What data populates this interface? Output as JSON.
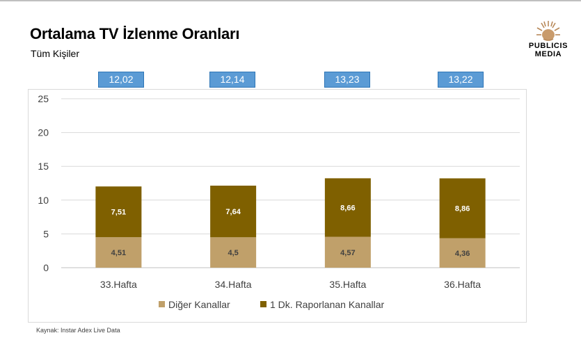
{
  "header": {
    "title": "Ortalama TV İzlenme Oranları",
    "subtitle": "Tüm Kişiler"
  },
  "logo": {
    "line1": "PUBLICIS",
    "line2": "MEDIA",
    "icon": "sun-lion-icon"
  },
  "totals": [
    "12,02",
    "12,14",
    "13,23",
    "13,22"
  ],
  "source": "Kaynak: Instar Adex Live Data",
  "colors": {
    "other": "#c0a06a",
    "reported": "#7f6000",
    "total_box": "#5b9bd5",
    "grid": "#d9d9d9"
  },
  "chart_data": {
    "type": "bar",
    "stacked": true,
    "categories": [
      "33.Hafta",
      "34.Hafta",
      "35.Hafta",
      "36.Hafta"
    ],
    "series": [
      {
        "name": "Diğer Kanallar",
        "values": [
          4.51,
          4.5,
          4.57,
          4.36
        ],
        "labels": [
          "4,51",
          "4,5",
          "4,57",
          "4,36"
        ],
        "color": "#c0a06a"
      },
      {
        "name": "1 Dk. Raporlanan Kanallar",
        "values": [
          7.51,
          7.64,
          8.66,
          8.86
        ],
        "labels": [
          "7,51",
          "7,64",
          "8,66",
          "8,86"
        ],
        "color": "#7f6000"
      }
    ],
    "ylim": [
      0,
      25
    ],
    "yticks": [
      0,
      5,
      10,
      15,
      20,
      25
    ],
    "grid": true,
    "legend": "bottom"
  }
}
